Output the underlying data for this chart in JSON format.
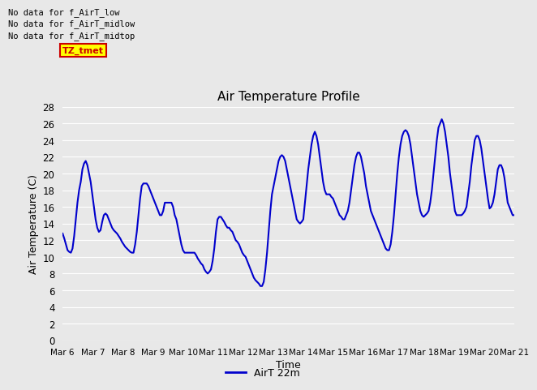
{
  "title": "Air Temperature Profile",
  "xlabel": "Time",
  "ylabel": "Air Temperature (C)",
  "legend_label": "AirT 22m",
  "line_color": "#0000cc",
  "line_width": 1.5,
  "background_color": "#e8e8e8",
  "plot_bg_color": "#e8e8e8",
  "ylim": [
    0,
    28
  ],
  "yticks": [
    0,
    2,
    4,
    6,
    8,
    10,
    12,
    14,
    16,
    18,
    20,
    22,
    24,
    26,
    28
  ],
  "xtick_labels": [
    "Mar 6",
    "Mar 7",
    "Mar 8",
    "Mar 9",
    "Mar 10",
    "Mar 11",
    "Mar 12",
    "Mar 13",
    "Mar 14",
    "Mar 15",
    "Mar 16",
    "Mar 17",
    "Mar 18",
    "Mar 19",
    "Mar 20",
    "Mar 21"
  ],
  "annotations": [
    "No data for f_AirT_low",
    "No data for f_AirT_midlow",
    "No data for f_AirT_midtop"
  ],
  "annotation_color": "#000000",
  "tz_label": "TZ_tmet",
  "tz_bg": "#ffff00",
  "tz_fg": "#cc0000",
  "values": [
    12.8,
    12.2,
    11.5,
    10.8,
    10.6,
    10.5,
    11.0,
    12.5,
    14.5,
    16.5,
    18.0,
    19.0,
    20.5,
    21.2,
    21.5,
    21.0,
    20.0,
    19.0,
    17.5,
    16.0,
    14.5,
    13.5,
    13.0,
    13.2,
    14.2,
    15.0,
    15.2,
    15.0,
    14.5,
    14.0,
    13.5,
    13.2,
    13.0,
    12.8,
    12.5,
    12.2,
    11.8,
    11.5,
    11.2,
    11.0,
    10.8,
    10.6,
    10.5,
    10.5,
    11.5,
    13.0,
    15.0,
    17.0,
    18.5,
    18.8,
    18.8,
    18.8,
    18.5,
    18.0,
    17.5,
    17.0,
    16.5,
    16.0,
    15.5,
    15.0,
    15.0,
    15.5,
    16.5,
    16.5,
    16.5,
    16.5,
    16.5,
    16.0,
    15.0,
    14.5,
    13.5,
    12.5,
    11.5,
    10.8,
    10.5,
    10.5,
    10.5,
    10.5,
    10.5,
    10.5,
    10.5,
    10.2,
    9.8,
    9.5,
    9.2,
    9.0,
    8.5,
    8.2,
    8.0,
    8.2,
    8.5,
    9.5,
    11.0,
    13.0,
    14.5,
    14.8,
    14.8,
    14.5,
    14.2,
    13.8,
    13.5,
    13.5,
    13.2,
    13.0,
    12.5,
    12.0,
    11.8,
    11.5,
    11.0,
    10.5,
    10.2,
    10.0,
    9.5,
    9.0,
    8.5,
    8.0,
    7.5,
    7.2,
    7.0,
    6.8,
    6.5,
    6.5,
    7.0,
    8.5,
    10.5,
    13.0,
    15.5,
    17.5,
    18.5,
    19.5,
    20.5,
    21.5,
    22.0,
    22.2,
    22.0,
    21.5,
    20.5,
    19.5,
    18.5,
    17.5,
    16.5,
    15.5,
    14.5,
    14.2,
    14.0,
    14.2,
    14.5,
    16.5,
    18.5,
    20.5,
    22.0,
    23.5,
    24.5,
    25.0,
    24.5,
    23.5,
    22.0,
    20.5,
    19.0,
    18.0,
    17.5,
    17.5,
    17.5,
    17.2,
    17.0,
    16.5,
    16.0,
    15.5,
    15.0,
    14.8,
    14.5,
    14.5,
    15.0,
    15.5,
    16.5,
    18.0,
    19.5,
    21.0,
    22.0,
    22.5,
    22.5,
    22.0,
    21.0,
    20.0,
    18.5,
    17.5,
    16.5,
    15.5,
    15.0,
    14.5,
    14.0,
    13.5,
    13.0,
    12.5,
    12.0,
    11.5,
    11.0,
    10.8,
    10.8,
    11.5,
    13.0,
    15.0,
    17.5,
    20.0,
    22.0,
    23.5,
    24.5,
    25.0,
    25.2,
    25.0,
    24.5,
    23.5,
    22.0,
    20.5,
    19.0,
    17.5,
    16.5,
    15.5,
    15.0,
    14.8,
    15.0,
    15.2,
    15.5,
    16.5,
    18.0,
    20.0,
    22.0,
    24.0,
    25.5,
    26.0,
    26.5,
    26.0,
    25.0,
    23.5,
    22.0,
    20.0,
    18.5,
    17.0,
    15.5,
    15.0,
    15.0,
    15.0,
    15.0,
    15.2,
    15.5,
    16.0,
    17.5,
    19.0,
    21.0,
    22.5,
    24.0,
    24.5,
    24.5,
    24.0,
    23.0,
    21.5,
    20.0,
    18.5,
    17.0,
    15.8,
    16.0,
    16.5,
    17.5,
    19.0,
    20.5,
    21.0,
    21.0,
    20.5,
    19.5,
    18.0,
    16.5,
    16.0,
    15.5,
    15.0,
    15.0
  ]
}
